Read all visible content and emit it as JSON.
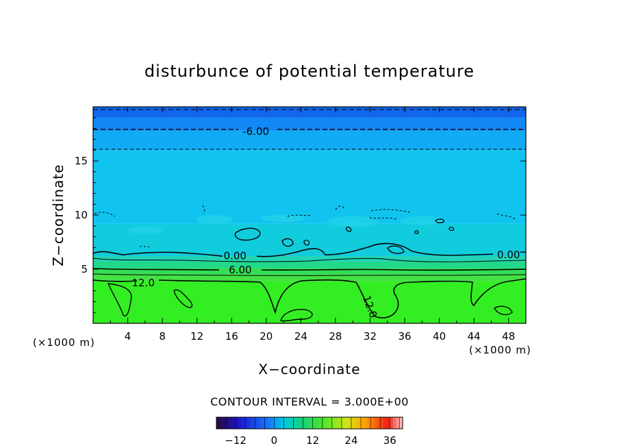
{
  "chart_data": {
    "type": "heatmap",
    "title": "disturbunce of potential temperature",
    "xlabel": "X−coordinate",
    "ylabel": "Z−coordinate",
    "x_unit": "(×1000 m)",
    "x_unit_right": "(×1000 m)",
    "xlim": [
      0,
      50
    ],
    "ylim": [
      0,
      20
    ],
    "x_ticks": [
      4,
      8,
      12,
      16,
      20,
      24,
      28,
      32,
      36,
      40,
      44,
      48
    ],
    "y_ticks": [
      5,
      10,
      15
    ],
    "layers": [
      {
        "z0": 0.0,
        "z1": 3.9,
        "value": 13.5,
        "color": "#33ee22"
      },
      {
        "z0": 3.9,
        "z1": 4.5,
        "value": 12.0,
        "color": "#44e044"
      },
      {
        "z0": 4.5,
        "z1": 5.1,
        "value": 9.0,
        "color": "#33dd55"
      },
      {
        "z0": 5.1,
        "z1": 5.7,
        "value": 6.0,
        "color": "#22d88a"
      },
      {
        "z0": 5.7,
        "z1": 6.2,
        "value": 3.0,
        "color": "#22d4b4"
      },
      {
        "z0": 6.2,
        "z1": 9.2,
        "value": 0.0,
        "color": "#11ccdd"
      },
      {
        "z0": 9.2,
        "z1": 16.0,
        "value": -1.5,
        "color": "#11c4f0"
      },
      {
        "z0": 16.0,
        "z1": 17.8,
        "value": -3.0,
        "color": "#11aaf5"
      },
      {
        "z0": 17.8,
        "z1": 19.0,
        "value": -6.0,
        "color": "#1188f5"
      },
      {
        "z0": 19.0,
        "z1": 20.0,
        "value": -9.0,
        "color": "#1166ee"
      }
    ],
    "contour_labels": [
      {
        "text": "-6.00",
        "x": 18.8,
        "z": 17.8
      },
      {
        "text": "0.00",
        "x": 16.4,
        "z": 6.3
      },
      {
        "text": "0.00",
        "x": 48.0,
        "z": 6.4
      },
      {
        "text": "6.00",
        "x": 17.0,
        "z": 5.0
      },
      {
        "text": "12.0",
        "x": 5.8,
        "z": 3.8
      },
      {
        "text": "12.0",
        "x": 31.6,
        "z": 1.8
      }
    ],
    "contour_interval_label": "CONTOUR INTERVAL = 3.000E+00",
    "colorbar": {
      "min": -18,
      "max": 40,
      "step": 3,
      "tick_values": [
        -12,
        0,
        12,
        24,
        36
      ],
      "tick_labels": [
        "−12",
        "0",
        "12",
        "24",
        "36"
      ]
    }
  }
}
